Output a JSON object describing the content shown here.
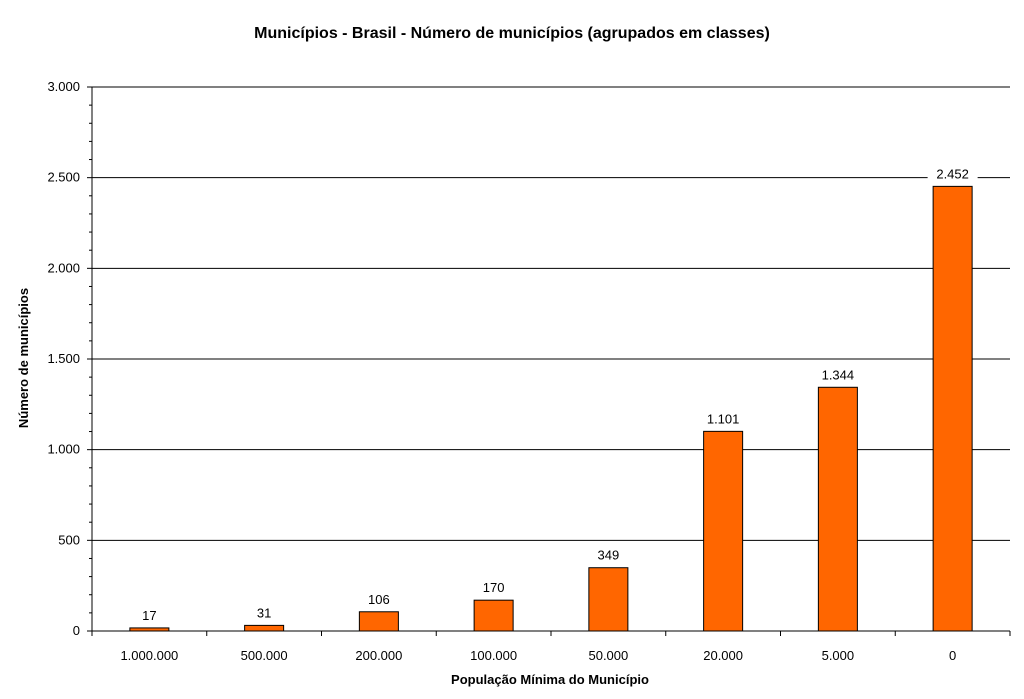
{
  "chart_data": {
    "type": "bar",
    "title": "Municípios - Brasil - Número de municípios (agrupados em classes)",
    "xlabel": "População Mínima do Município",
    "ylabel": "Número de municípios",
    "categories": [
      "1.000.000",
      "500.000",
      "200.000",
      "100.000",
      "50.000",
      "20.000",
      "5.000",
      "0"
    ],
    "values": [
      17,
      31,
      106,
      170,
      349,
      1101,
      1344,
      2452
    ],
    "value_labels": [
      "17",
      "31",
      "106",
      "170",
      "349",
      "1.101",
      "1.344",
      "2.452"
    ],
    "ylim": [
      0,
      3000
    ],
    "yticks": [
      0,
      500,
      1000,
      1500,
      2000,
      2500,
      3000
    ],
    "ytick_labels": [
      "0",
      "500",
      "1.000",
      "1.500",
      "2.000",
      "2.500",
      "3.000"
    ],
    "grid": true,
    "legend": "none",
    "colors": {
      "bar": "#ff6600",
      "bar_outline": "#000000",
      "grid": "#000000"
    }
  }
}
